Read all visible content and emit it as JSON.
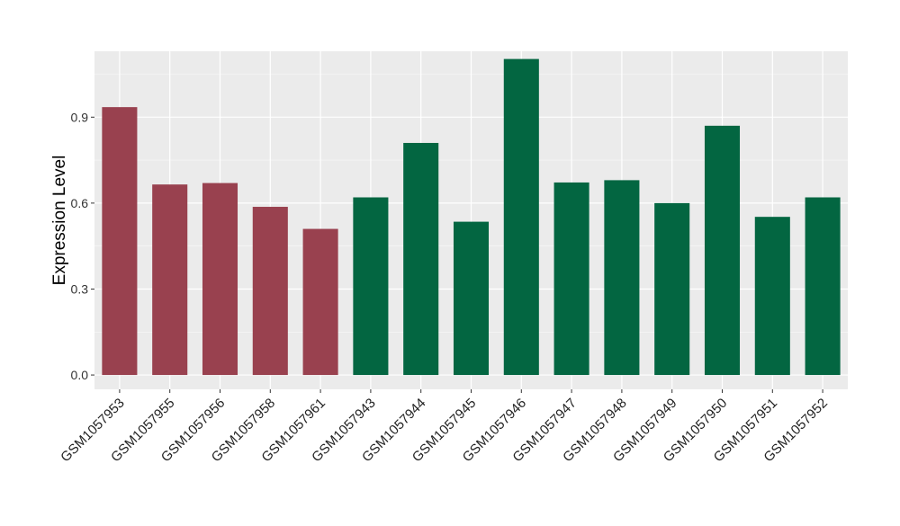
{
  "chart_data": {
    "type": "bar",
    "ylabel": "Expression Level",
    "xlabel": "",
    "ylim": [
      -0.05,
      1.13
    ],
    "yticks": [
      0.0,
      0.3,
      0.6,
      0.9
    ],
    "ytick_labels": [
      "0.0",
      "0.3",
      "0.6",
      "0.9"
    ],
    "grid": true,
    "categories": [
      "GSM1057953",
      "GSM1057955",
      "GSM1057956",
      "GSM1057958",
      "GSM1057961",
      "GSM1057943",
      "GSM1057944",
      "GSM1057945",
      "GSM1057946",
      "GSM1057947",
      "GSM1057948",
      "GSM1057949",
      "GSM1057950",
      "GSM1057951",
      "GSM1057952"
    ],
    "values": [
      0.935,
      0.665,
      0.67,
      0.587,
      0.51,
      0.62,
      0.81,
      0.535,
      1.103,
      0.672,
      0.68,
      0.6,
      0.87,
      0.552,
      0.62
    ],
    "groups": [
      "a",
      "a",
      "a",
      "a",
      "a",
      "b",
      "b",
      "b",
      "b",
      "b",
      "b",
      "b",
      "b",
      "b",
      "b"
    ],
    "colors": {
      "a": "#99414f",
      "b": "#036641",
      "panel": "#ebebeb",
      "grid": "#ffffff"
    }
  }
}
